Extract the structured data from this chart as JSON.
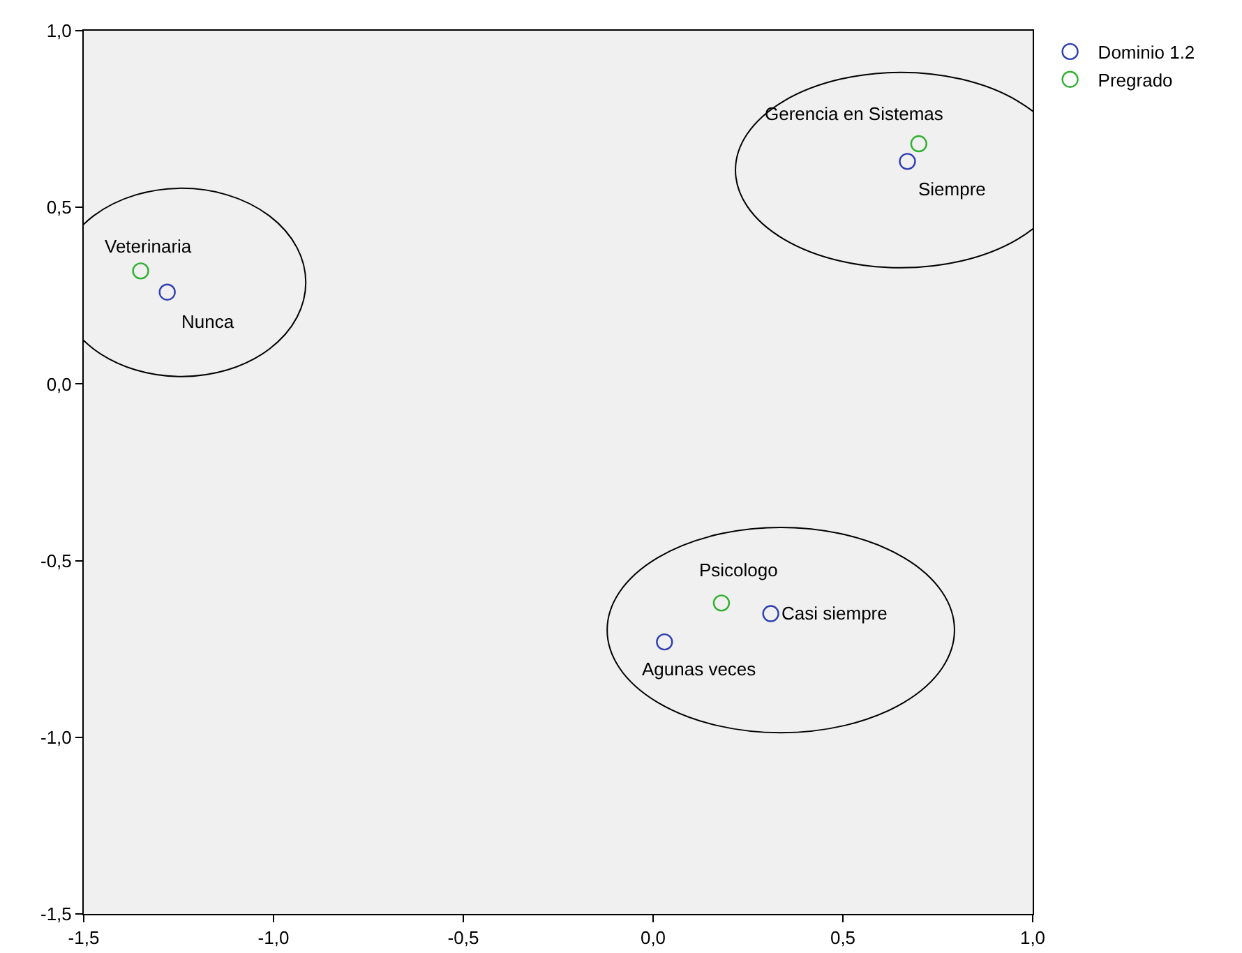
{
  "chart_data": {
    "type": "scatter",
    "marker": "circle",
    "legend": "top right",
    "grid": false,
    "xlim": [
      -1.5,
      1.0
    ],
    "ylim": [
      -1.5,
      1.0
    ],
    "xticks": [
      {
        "value": -1.5,
        "label": "-1,5"
      },
      {
        "value": -1.0,
        "label": "-1,0"
      },
      {
        "value": -0.5,
        "label": "-0,5"
      },
      {
        "value": 0.0,
        "label": "0,0"
      },
      {
        "value": 0.5,
        "label": "0,5"
      },
      {
        "value": 1.0,
        "label": "1,0"
      }
    ],
    "yticks": [
      {
        "value": -1.5,
        "label": "-1,5"
      },
      {
        "value": -1.0,
        "label": "-1,0"
      },
      {
        "value": -0.5,
        "label": "-0,5"
      },
      {
        "value": 0.0,
        "label": "0,0"
      },
      {
        "value": 0.5,
        "label": "0,5"
      },
      {
        "value": 1.0,
        "label": "1,0"
      }
    ],
    "series": [
      {
        "name": "Dominio 1.2",
        "color": "#3040b0",
        "x": [
          -1.28,
          0.67,
          0.31,
          0.03
        ],
        "values": [
          0.26,
          0.63,
          -0.65,
          -0.73
        ]
      },
      {
        "name": "Pregrado",
        "color": "#30b030",
        "x": [
          -1.35,
          0.7,
          0.18
        ],
        "values": [
          0.32,
          0.68,
          -0.62
        ]
      }
    ],
    "annotations": [
      {
        "text": "Nunca",
        "x": -1.28,
        "y": 0.26
      },
      {
        "text": "Siempre",
        "x": 0.67,
        "y": 0.63
      },
      {
        "text": "Casi siempre",
        "x": 0.31,
        "y": -0.65
      },
      {
        "text": "Agunas veces",
        "x": 0.03,
        "y": -0.73
      },
      {
        "text": "Veterinaria",
        "x": -1.35,
        "y": 0.32
      },
      {
        "text": "Gerencia en Sistemas",
        "x": 0.7,
        "y": 0.68
      },
      {
        "text": "Psicologo",
        "x": 0.18,
        "y": -0.62
      }
    ]
  }
}
